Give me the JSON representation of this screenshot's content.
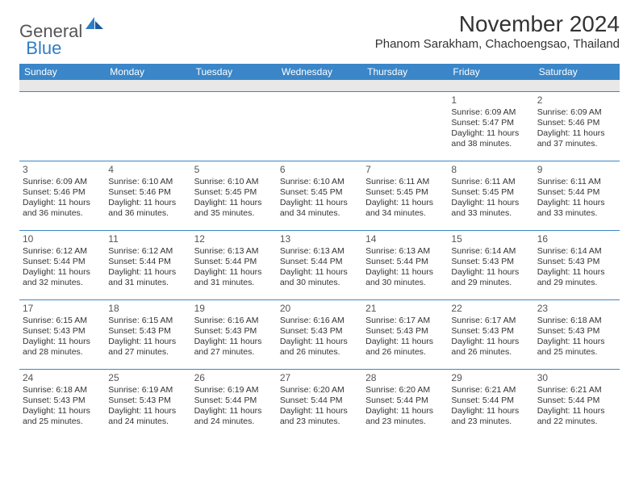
{
  "logo": {
    "general": "General",
    "blue": "Blue"
  },
  "title": {
    "month_year": "November 2024",
    "location": "Phanom Sarakham, Chachoengsao, Thailand"
  },
  "colors": {
    "header_bg": "#3a86c8",
    "header_text": "#ffffff",
    "border": "#3a86c8",
    "logo_blue": "#2f7dc4",
    "logo_gray": "#555555",
    "text": "#333333",
    "empty_row_bg": "#e8e8e8"
  },
  "day_headers": [
    "Sunday",
    "Monday",
    "Tuesday",
    "Wednesday",
    "Thursday",
    "Friday",
    "Saturday"
  ],
  "days": [
    {
      "n": "1",
      "sr": "Sunrise: 6:09 AM",
      "ss": "Sunset: 5:47 PM",
      "d1": "Daylight: 11 hours",
      "d2": "and 38 minutes."
    },
    {
      "n": "2",
      "sr": "Sunrise: 6:09 AM",
      "ss": "Sunset: 5:46 PM",
      "d1": "Daylight: 11 hours",
      "d2": "and 37 minutes."
    },
    {
      "n": "3",
      "sr": "Sunrise: 6:09 AM",
      "ss": "Sunset: 5:46 PM",
      "d1": "Daylight: 11 hours",
      "d2": "and 36 minutes."
    },
    {
      "n": "4",
      "sr": "Sunrise: 6:10 AM",
      "ss": "Sunset: 5:46 PM",
      "d1": "Daylight: 11 hours",
      "d2": "and 36 minutes."
    },
    {
      "n": "5",
      "sr": "Sunrise: 6:10 AM",
      "ss": "Sunset: 5:45 PM",
      "d1": "Daylight: 11 hours",
      "d2": "and 35 minutes."
    },
    {
      "n": "6",
      "sr": "Sunrise: 6:10 AM",
      "ss": "Sunset: 5:45 PM",
      "d1": "Daylight: 11 hours",
      "d2": "and 34 minutes."
    },
    {
      "n": "7",
      "sr": "Sunrise: 6:11 AM",
      "ss": "Sunset: 5:45 PM",
      "d1": "Daylight: 11 hours",
      "d2": "and 34 minutes."
    },
    {
      "n": "8",
      "sr": "Sunrise: 6:11 AM",
      "ss": "Sunset: 5:45 PM",
      "d1": "Daylight: 11 hours",
      "d2": "and 33 minutes."
    },
    {
      "n": "9",
      "sr": "Sunrise: 6:11 AM",
      "ss": "Sunset: 5:44 PM",
      "d1": "Daylight: 11 hours",
      "d2": "and 33 minutes."
    },
    {
      "n": "10",
      "sr": "Sunrise: 6:12 AM",
      "ss": "Sunset: 5:44 PM",
      "d1": "Daylight: 11 hours",
      "d2": "and 32 minutes."
    },
    {
      "n": "11",
      "sr": "Sunrise: 6:12 AM",
      "ss": "Sunset: 5:44 PM",
      "d1": "Daylight: 11 hours",
      "d2": "and 31 minutes."
    },
    {
      "n": "12",
      "sr": "Sunrise: 6:13 AM",
      "ss": "Sunset: 5:44 PM",
      "d1": "Daylight: 11 hours",
      "d2": "and 31 minutes."
    },
    {
      "n": "13",
      "sr": "Sunrise: 6:13 AM",
      "ss": "Sunset: 5:44 PM",
      "d1": "Daylight: 11 hours",
      "d2": "and 30 minutes."
    },
    {
      "n": "14",
      "sr": "Sunrise: 6:13 AM",
      "ss": "Sunset: 5:44 PM",
      "d1": "Daylight: 11 hours",
      "d2": "and 30 minutes."
    },
    {
      "n": "15",
      "sr": "Sunrise: 6:14 AM",
      "ss": "Sunset: 5:43 PM",
      "d1": "Daylight: 11 hours",
      "d2": "and 29 minutes."
    },
    {
      "n": "16",
      "sr": "Sunrise: 6:14 AM",
      "ss": "Sunset: 5:43 PM",
      "d1": "Daylight: 11 hours",
      "d2": "and 29 minutes."
    },
    {
      "n": "17",
      "sr": "Sunrise: 6:15 AM",
      "ss": "Sunset: 5:43 PM",
      "d1": "Daylight: 11 hours",
      "d2": "and 28 minutes."
    },
    {
      "n": "18",
      "sr": "Sunrise: 6:15 AM",
      "ss": "Sunset: 5:43 PM",
      "d1": "Daylight: 11 hours",
      "d2": "and 27 minutes."
    },
    {
      "n": "19",
      "sr": "Sunrise: 6:16 AM",
      "ss": "Sunset: 5:43 PM",
      "d1": "Daylight: 11 hours",
      "d2": "and 27 minutes."
    },
    {
      "n": "20",
      "sr": "Sunrise: 6:16 AM",
      "ss": "Sunset: 5:43 PM",
      "d1": "Daylight: 11 hours",
      "d2": "and 26 minutes."
    },
    {
      "n": "21",
      "sr": "Sunrise: 6:17 AM",
      "ss": "Sunset: 5:43 PM",
      "d1": "Daylight: 11 hours",
      "d2": "and 26 minutes."
    },
    {
      "n": "22",
      "sr": "Sunrise: 6:17 AM",
      "ss": "Sunset: 5:43 PM",
      "d1": "Daylight: 11 hours",
      "d2": "and 26 minutes."
    },
    {
      "n": "23",
      "sr": "Sunrise: 6:18 AM",
      "ss": "Sunset: 5:43 PM",
      "d1": "Daylight: 11 hours",
      "d2": "and 25 minutes."
    },
    {
      "n": "24",
      "sr": "Sunrise: 6:18 AM",
      "ss": "Sunset: 5:43 PM",
      "d1": "Daylight: 11 hours",
      "d2": "and 25 minutes."
    },
    {
      "n": "25",
      "sr": "Sunrise: 6:19 AM",
      "ss": "Sunset: 5:43 PM",
      "d1": "Daylight: 11 hours",
      "d2": "and 24 minutes."
    },
    {
      "n": "26",
      "sr": "Sunrise: 6:19 AM",
      "ss": "Sunset: 5:44 PM",
      "d1": "Daylight: 11 hours",
      "d2": "and 24 minutes."
    },
    {
      "n": "27",
      "sr": "Sunrise: 6:20 AM",
      "ss": "Sunset: 5:44 PM",
      "d1": "Daylight: 11 hours",
      "d2": "and 23 minutes."
    },
    {
      "n": "28",
      "sr": "Sunrise: 6:20 AM",
      "ss": "Sunset: 5:44 PM",
      "d1": "Daylight: 11 hours",
      "d2": "and 23 minutes."
    },
    {
      "n": "29",
      "sr": "Sunrise: 6:21 AM",
      "ss": "Sunset: 5:44 PM",
      "d1": "Daylight: 11 hours",
      "d2": "and 23 minutes."
    },
    {
      "n": "30",
      "sr": "Sunrise: 6:21 AM",
      "ss": "Sunset: 5:44 PM",
      "d1": "Daylight: 11 hours",
      "d2": "and 22 minutes."
    }
  ]
}
